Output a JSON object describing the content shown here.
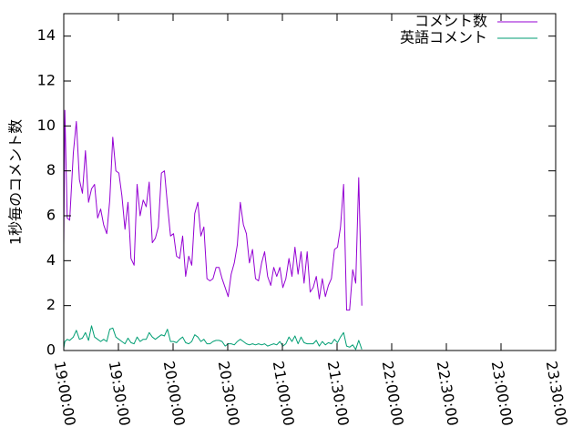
{
  "chart_data": {
    "type": "line",
    "title": "",
    "xlabel": "",
    "ylabel": "1秒毎のコメント数",
    "xlim": [
      "19:00:00",
      "23:30:00"
    ],
    "ylim": [
      0,
      15
    ],
    "x_ticks": [
      "19:00:00",
      "19:30:00",
      "20:00:00",
      "20:30:00",
      "21:00:00",
      "21:30:00",
      "22:00:00",
      "22:30:00",
      "23:00:00",
      "23:30:00"
    ],
    "y_ticks": [
      0,
      2,
      4,
      6,
      8,
      10,
      12,
      14
    ],
    "grid": false,
    "legend_position": "top-right",
    "series": [
      {
        "name": "コメント数",
        "color": "#9400d3",
        "points": [
          [
            "19:00:00",
            4.7
          ],
          [
            "19:00:35",
            10.7
          ],
          [
            "19:01:55",
            5.9
          ],
          [
            "19:03:15",
            5.8
          ],
          [
            "19:05:15",
            8.8
          ],
          [
            "19:06:55",
            10.2
          ],
          [
            "19:08:35",
            7.6
          ],
          [
            "19:10:15",
            7.0
          ],
          [
            "19:11:55",
            8.9
          ],
          [
            "19:13:35",
            6.6
          ],
          [
            "19:15:15",
            7.2
          ],
          [
            "19:16:55",
            7.4
          ],
          [
            "19:18:35",
            5.9
          ],
          [
            "19:20:15",
            6.3
          ],
          [
            "19:21:55",
            5.6
          ],
          [
            "19:23:35",
            5.2
          ],
          [
            "19:25:15",
            6.7
          ],
          [
            "19:26:55",
            9.5
          ],
          [
            "19:28:35",
            8.0
          ],
          [
            "19:30:15",
            7.9
          ],
          [
            "19:31:55",
            6.9
          ],
          [
            "19:33:35",
            5.4
          ],
          [
            "19:35:15",
            6.6
          ],
          [
            "19:36:55",
            4.1
          ],
          [
            "19:38:35",
            3.8
          ],
          [
            "19:40:15",
            7.4
          ],
          [
            "19:41:55",
            6.0
          ],
          [
            "19:43:35",
            6.7
          ],
          [
            "19:45:15",
            6.4
          ],
          [
            "19:46:55",
            7.5
          ],
          [
            "19:48:35",
            4.8
          ],
          [
            "19:50:15",
            5.0
          ],
          [
            "19:51:55",
            5.5
          ],
          [
            "19:53:35",
            7.9
          ],
          [
            "19:55:15",
            8.0
          ],
          [
            "19:56:55",
            6.5
          ],
          [
            "19:58:35",
            5.1
          ],
          [
            "20:00:15",
            5.2
          ],
          [
            "20:01:55",
            4.2
          ],
          [
            "20:03:35",
            4.1
          ],
          [
            "20:05:15",
            5.1
          ],
          [
            "20:06:55",
            3.3
          ],
          [
            "20:08:35",
            4.2
          ],
          [
            "20:10:15",
            3.8
          ],
          [
            "20:11:55",
            6.1
          ],
          [
            "20:13:35",
            6.6
          ],
          [
            "20:15:15",
            5.1
          ],
          [
            "20:16:55",
            5.5
          ],
          [
            "20:18:35",
            3.2
          ],
          [
            "20:20:15",
            3.1
          ],
          [
            "20:21:55",
            3.2
          ],
          [
            "20:23:35",
            3.7
          ],
          [
            "20:25:15",
            3.7
          ],
          [
            "20:26:55",
            3.2
          ],
          [
            "20:28:35",
            2.8
          ],
          [
            "20:30:15",
            2.4
          ],
          [
            "20:31:55",
            3.4
          ],
          [
            "20:33:35",
            3.9
          ],
          [
            "20:35:15",
            4.7
          ],
          [
            "20:36:55",
            6.6
          ],
          [
            "20:38:35",
            5.6
          ],
          [
            "20:40:15",
            5.2
          ],
          [
            "20:41:55",
            3.9
          ],
          [
            "20:43:35",
            4.5
          ],
          [
            "20:45:15",
            3.2
          ],
          [
            "20:46:55",
            3.1
          ],
          [
            "20:48:35",
            3.9
          ],
          [
            "20:50:15",
            4.4
          ],
          [
            "20:51:55",
            3.3
          ],
          [
            "20:53:35",
            2.9
          ],
          [
            "20:55:15",
            3.7
          ],
          [
            "20:56:55",
            3.3
          ],
          [
            "20:58:35",
            3.7
          ],
          [
            "21:00:15",
            2.8
          ],
          [
            "21:01:55",
            3.2
          ],
          [
            "21:03:35",
            4.1
          ],
          [
            "21:05:15",
            3.3
          ],
          [
            "21:06:55",
            4.6
          ],
          [
            "21:08:35",
            3.4
          ],
          [
            "21:10:15",
            4.4
          ],
          [
            "21:11:55",
            3.0
          ],
          [
            "21:13:35",
            4.4
          ],
          [
            "21:15:15",
            2.6
          ],
          [
            "21:16:55",
            2.8
          ],
          [
            "21:18:35",
            3.3
          ],
          [
            "21:20:15",
            2.3
          ],
          [
            "21:21:55",
            3.2
          ],
          [
            "21:23:35",
            2.4
          ],
          [
            "21:25:15",
            2.9
          ],
          [
            "21:26:55",
            3.2
          ],
          [
            "21:28:35",
            4.5
          ],
          [
            "21:30:15",
            4.6
          ],
          [
            "21:31:55",
            5.5
          ],
          [
            "21:33:35",
            7.4
          ],
          [
            "21:35:15",
            1.8
          ],
          [
            "21:36:55",
            1.8
          ],
          [
            "21:38:35",
            3.6
          ],
          [
            "21:40:15",
            3.0
          ],
          [
            "21:41:55",
            7.7
          ],
          [
            "21:43:35",
            2.0
          ]
        ]
      },
      {
        "name": "英語コメント",
        "color": "#009e73",
        "points": [
          [
            "19:00:00",
            0.1
          ],
          [
            "19:00:35",
            0.4
          ],
          [
            "19:01:55",
            0.5
          ],
          [
            "19:03:15",
            0.45
          ],
          [
            "19:05:15",
            0.6
          ],
          [
            "19:06:55",
            0.9
          ],
          [
            "19:08:35",
            0.5
          ],
          [
            "19:10:15",
            0.55
          ],
          [
            "19:11:55",
            0.8
          ],
          [
            "19:13:35",
            0.45
          ],
          [
            "19:15:15",
            1.1
          ],
          [
            "19:16:55",
            0.6
          ],
          [
            "19:18:35",
            0.5
          ],
          [
            "19:20:15",
            0.4
          ],
          [
            "19:21:55",
            0.5
          ],
          [
            "19:23:35",
            0.4
          ],
          [
            "19:25:15",
            0.95
          ],
          [
            "19:26:55",
            1.0
          ],
          [
            "19:28:35",
            0.6
          ],
          [
            "19:30:15",
            0.5
          ],
          [
            "19:31:55",
            0.4
          ],
          [
            "19:33:35",
            0.3
          ],
          [
            "19:35:15",
            0.55
          ],
          [
            "19:36:55",
            0.35
          ],
          [
            "19:38:35",
            0.3
          ],
          [
            "19:40:15",
            0.6
          ],
          [
            "19:41:55",
            0.4
          ],
          [
            "19:43:35",
            0.5
          ],
          [
            "19:45:15",
            0.5
          ],
          [
            "19:46:55",
            0.8
          ],
          [
            "19:48:35",
            0.6
          ],
          [
            "19:50:15",
            0.5
          ],
          [
            "19:51:55",
            0.6
          ],
          [
            "19:53:35",
            0.7
          ],
          [
            "19:55:15",
            0.65
          ],
          [
            "19:56:55",
            0.95
          ],
          [
            "19:58:35",
            0.4
          ],
          [
            "20:00:15",
            0.4
          ],
          [
            "20:01:55",
            0.35
          ],
          [
            "20:03:35",
            0.5
          ],
          [
            "20:05:15",
            0.6
          ],
          [
            "20:06:55",
            0.35
          ],
          [
            "20:08:35",
            0.3
          ],
          [
            "20:10:15",
            0.4
          ],
          [
            "20:11:55",
            0.7
          ],
          [
            "20:13:35",
            0.6
          ],
          [
            "20:15:15",
            0.4
          ],
          [
            "20:16:55",
            0.5
          ],
          [
            "20:18:35",
            0.3
          ],
          [
            "20:20:15",
            0.3
          ],
          [
            "20:21:55",
            0.4
          ],
          [
            "20:23:35",
            0.45
          ],
          [
            "20:25:15",
            0.45
          ],
          [
            "20:26:55",
            0.4
          ],
          [
            "20:28:35",
            0.2
          ],
          [
            "20:30:15",
            0.3
          ],
          [
            "20:31:55",
            0.3
          ],
          [
            "20:33:35",
            0.25
          ],
          [
            "20:35:15",
            0.4
          ],
          [
            "20:36:55",
            0.5
          ],
          [
            "20:38:35",
            0.4
          ],
          [
            "20:40:15",
            0.3
          ],
          [
            "20:41:55",
            0.25
          ],
          [
            "20:43:35",
            0.3
          ],
          [
            "20:45:15",
            0.25
          ],
          [
            "20:46:55",
            0.3
          ],
          [
            "20:48:35",
            0.25
          ],
          [
            "20:50:15",
            0.3
          ],
          [
            "20:51:55",
            0.2
          ],
          [
            "20:53:35",
            0.25
          ],
          [
            "20:55:15",
            0.3
          ],
          [
            "20:56:55",
            0.25
          ],
          [
            "20:58:35",
            0.4
          ],
          [
            "21:00:15",
            0.2
          ],
          [
            "21:01:55",
            0.3
          ],
          [
            "21:03:35",
            0.6
          ],
          [
            "21:05:15",
            0.4
          ],
          [
            "21:06:55",
            0.65
          ],
          [
            "21:08:35",
            0.3
          ],
          [
            "21:10:15",
            0.6
          ],
          [
            "21:11:55",
            0.35
          ],
          [
            "21:13:35",
            0.3
          ],
          [
            "21:15:15",
            0.3
          ],
          [
            "21:16:55",
            0.3
          ],
          [
            "21:18:35",
            0.45
          ],
          [
            "21:20:15",
            0.2
          ],
          [
            "21:21:55",
            0.4
          ],
          [
            "21:23:35",
            0.25
          ],
          [
            "21:25:15",
            0.35
          ],
          [
            "21:26:55",
            0.3
          ],
          [
            "21:28:35",
            0.5
          ],
          [
            "21:30:15",
            0.35
          ],
          [
            "21:31:55",
            0.6
          ],
          [
            "21:33:35",
            0.8
          ],
          [
            "21:35:15",
            0.2
          ],
          [
            "21:36:55",
            0.15
          ],
          [
            "21:38:35",
            0.25
          ],
          [
            "21:40:15",
            0.05
          ],
          [
            "21:41:55",
            0.45
          ],
          [
            "21:43:35",
            0.05
          ]
        ]
      }
    ]
  }
}
